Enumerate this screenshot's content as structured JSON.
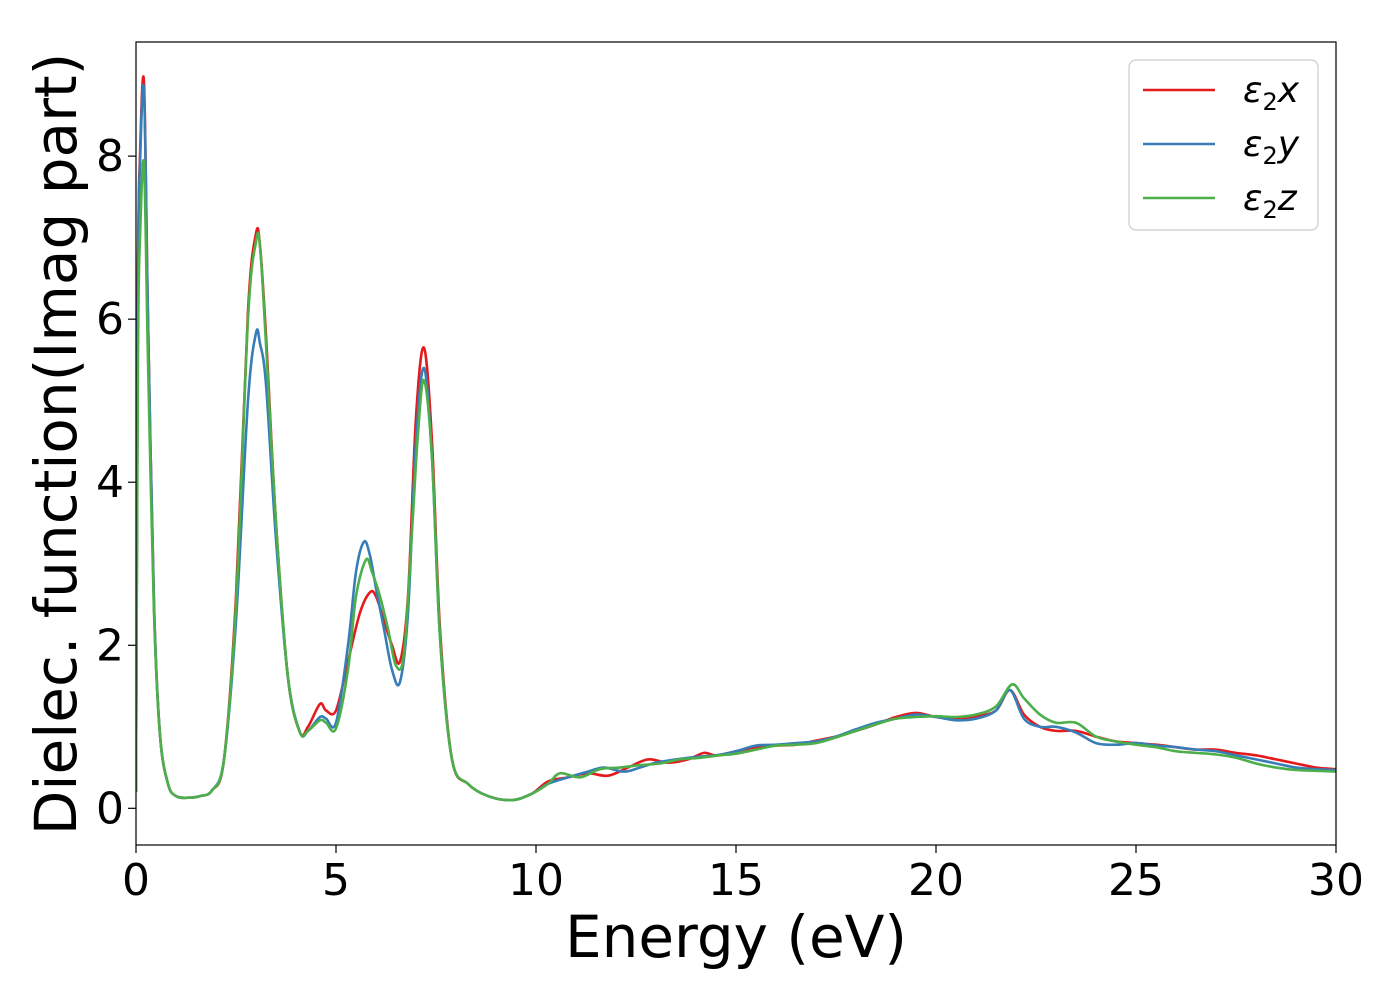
{
  "chart_data": {
    "type": "line",
    "title": "",
    "xlabel": "Energy (eV)",
    "ylabel": "Dielec. function(Imag part)",
    "xlim": [
      0,
      30
    ],
    "ylim": [
      -0.45,
      9.4
    ],
    "xticks": [
      0,
      5,
      10,
      15,
      20,
      25,
      30
    ],
    "yticks": [
      0,
      2,
      4,
      6,
      8
    ],
    "xtick_labels": [
      "0",
      "5",
      "10",
      "15",
      "20",
      "25",
      "30"
    ],
    "ytick_labels": [
      "0",
      "2",
      "4",
      "6",
      "8"
    ],
    "grid": false,
    "legend_position": "top-right",
    "series": [
      {
        "name": "ε2x",
        "label_main": "ε",
        "label_sub": "2",
        "label_var": "x",
        "color": "#e41a1c",
        "x": [
          0,
          0.05,
          0.1,
          0.2,
          0.3,
          0.45,
          0.6,
          0.8,
          1.0,
          1.3,
          1.6,
          1.9,
          2.2,
          2.5,
          2.8,
          3.0,
          3.1,
          3.25,
          3.5,
          3.8,
          4.1,
          4.3,
          4.6,
          4.75,
          5.0,
          5.3,
          5.6,
          5.85,
          6.0,
          6.2,
          6.4,
          6.6,
          6.8,
          7.0,
          7.2,
          7.4,
          7.6,
          7.9,
          8.3,
          8.8,
          9.4,
          9.9,
          10.3,
          10.8,
          11.3,
          11.8,
          12.3,
          12.8,
          13.3,
          13.8,
          14.2,
          14.5,
          15,
          15.5,
          16,
          16.5,
          17,
          17.5,
          18,
          18.5,
          19,
          19.5,
          20,
          20.5,
          21,
          21.5,
          21.85,
          22.2,
          22.6,
          23,
          23.5,
          24,
          24.5,
          25,
          25.5,
          26,
          26.5,
          27,
          27.5,
          28,
          28.5,
          29,
          29.5,
          30
        ],
        "values": [
          0.2,
          6.5,
          8.0,
          8.9,
          6.0,
          2.5,
          0.9,
          0.3,
          0.15,
          0.13,
          0.15,
          0.22,
          0.6,
          2.6,
          6.1,
          7.05,
          6.9,
          5.8,
          3.5,
          1.6,
          0.93,
          1.0,
          1.28,
          1.2,
          1.2,
          1.8,
          2.4,
          2.65,
          2.6,
          2.3,
          2.0,
          1.8,
          2.6,
          4.8,
          5.65,
          4.5,
          2.2,
          0.6,
          0.3,
          0.15,
          0.1,
          0.18,
          0.33,
          0.38,
          0.43,
          0.4,
          0.5,
          0.6,
          0.56,
          0.6,
          0.68,
          0.65,
          0.7,
          0.75,
          0.77,
          0.78,
          0.83,
          0.88,
          0.95,
          1.03,
          1.12,
          1.17,
          1.12,
          1.1,
          1.13,
          1.2,
          1.45,
          1.15,
          1.0,
          0.95,
          0.95,
          0.88,
          0.82,
          0.8,
          0.78,
          0.75,
          0.72,
          0.72,
          0.68,
          0.65,
          0.6,
          0.55,
          0.5,
          0.48
        ]
      },
      {
        "name": "ε2y",
        "label_main": "ε",
        "label_sub": "2",
        "label_var": "y",
        "color": "#377eb8",
        "x": [
          0,
          0.05,
          0.1,
          0.2,
          0.3,
          0.45,
          0.6,
          0.8,
          1.0,
          1.3,
          1.6,
          1.9,
          2.2,
          2.5,
          2.8,
          3.0,
          3.1,
          3.25,
          3.5,
          3.8,
          4.1,
          4.3,
          4.6,
          4.75,
          5.0,
          5.3,
          5.5,
          5.7,
          5.85,
          6.0,
          6.2,
          6.4,
          6.6,
          6.8,
          7.0,
          7.2,
          7.4,
          7.6,
          7.9,
          8.3,
          8.8,
          9.4,
          9.9,
          10.3,
          10.8,
          11.3,
          11.7,
          12.2,
          12.6,
          13,
          13.5,
          14,
          14.5,
          15,
          15.5,
          16,
          16.5,
          17,
          17.5,
          18,
          18.5,
          19,
          19.5,
          20,
          20.5,
          21,
          21.5,
          21.85,
          22.2,
          22.6,
          23,
          23.5,
          24,
          24.5,
          25,
          25.5,
          26,
          26.5,
          27,
          27.5,
          28,
          28.5,
          29,
          29.5,
          30
        ],
        "values": [
          0.2,
          6.4,
          7.9,
          8.8,
          6.0,
          2.5,
          0.9,
          0.3,
          0.15,
          0.13,
          0.15,
          0.22,
          0.6,
          2.3,
          5.0,
          5.83,
          5.7,
          5.2,
          3.3,
          1.6,
          0.93,
          0.95,
          1.12,
          1.1,
          1.05,
          2.0,
          2.9,
          3.27,
          3.1,
          2.7,
          2.2,
          1.7,
          1.55,
          2.4,
          4.5,
          5.4,
          4.3,
          2.1,
          0.6,
          0.3,
          0.15,
          0.1,
          0.18,
          0.3,
          0.38,
          0.45,
          0.5,
          0.45,
          0.5,
          0.56,
          0.6,
          0.63,
          0.65,
          0.7,
          0.77,
          0.78,
          0.8,
          0.82,
          0.88,
          0.97,
          1.05,
          1.1,
          1.15,
          1.12,
          1.08,
          1.1,
          1.2,
          1.45,
          1.1,
          1.0,
          1.0,
          0.93,
          0.8,
          0.78,
          0.8,
          0.77,
          0.75,
          0.72,
          0.7,
          0.65,
          0.6,
          0.55,
          0.5,
          0.48,
          0.47
        ]
      },
      {
        "name": "ε2z",
        "label_main": "ε",
        "label_sub": "2",
        "label_var": "z",
        "color": "#4daf4a",
        "x": [
          0,
          0.05,
          0.1,
          0.2,
          0.3,
          0.45,
          0.6,
          0.8,
          1.0,
          1.3,
          1.6,
          1.9,
          2.2,
          2.5,
          2.8,
          3.0,
          3.1,
          3.25,
          3.5,
          3.8,
          4.1,
          4.3,
          4.6,
          4.75,
          5.0,
          5.3,
          5.5,
          5.75,
          5.9,
          6.1,
          6.3,
          6.5,
          6.7,
          6.9,
          7.05,
          7.2,
          7.4,
          7.6,
          7.9,
          8.3,
          8.8,
          9.4,
          9.9,
          10.3,
          10.6,
          11.1,
          11.6,
          12.1,
          12.6,
          13.1,
          13.6,
          14.1,
          14.6,
          15,
          15.5,
          16,
          16.5,
          17,
          17.5,
          18,
          18.5,
          19,
          19.5,
          20,
          20.5,
          21,
          21.5,
          21.9,
          22.2,
          22.6,
          23,
          23.5,
          24,
          24.5,
          25,
          25.5,
          26,
          26.5,
          27,
          27.5,
          28,
          28.5,
          29,
          29.5,
          30
        ],
        "values": [
          0.2,
          5.6,
          7.0,
          7.9,
          5.5,
          2.4,
          0.9,
          0.3,
          0.15,
          0.13,
          0.15,
          0.22,
          0.6,
          2.5,
          6.0,
          6.95,
          6.9,
          5.7,
          3.5,
          1.6,
          0.93,
          0.95,
          1.08,
          1.05,
          0.98,
          1.7,
          2.6,
          3.05,
          2.9,
          2.6,
          2.2,
          1.75,
          1.9,
          3.4,
          4.6,
          5.25,
          4.3,
          2.1,
          0.6,
          0.3,
          0.15,
          0.1,
          0.18,
          0.3,
          0.43,
          0.38,
          0.48,
          0.5,
          0.53,
          0.55,
          0.6,
          0.62,
          0.65,
          0.67,
          0.72,
          0.77,
          0.78,
          0.8,
          0.87,
          0.95,
          1.03,
          1.1,
          1.12,
          1.13,
          1.12,
          1.15,
          1.25,
          1.52,
          1.35,
          1.15,
          1.05,
          1.05,
          0.88,
          0.82,
          0.78,
          0.75,
          0.7,
          0.68,
          0.66,
          0.62,
          0.55,
          0.5,
          0.47,
          0.46,
          0.45
        ]
      }
    ]
  }
}
